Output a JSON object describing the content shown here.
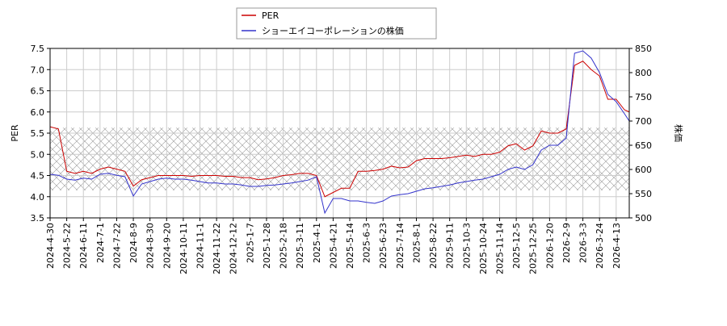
{
  "chart_data": {
    "type": "line",
    "ylabel": "PER",
    "y2label": "株価",
    "x": [
      0,
      7,
      14,
      21,
      28,
      35,
      42,
      49,
      56,
      63,
      70,
      77,
      84,
      91,
      98,
      105,
      112,
      119,
      126,
      133,
      140,
      147,
      154,
      161,
      168,
      175,
      182,
      189,
      196,
      203,
      210,
      217,
      224,
      231,
      238,
      245,
      252,
      259,
      266,
      273,
      280,
      287,
      294,
      301,
      308,
      315,
      322,
      329,
      336,
      343,
      350,
      357,
      364,
      371,
      378,
      385,
      392,
      399,
      406,
      413,
      420,
      427,
      434,
      441,
      448,
      455,
      462,
      469,
      476,
      483,
      487
    ],
    "xlim": [
      0,
      487
    ],
    "xticks": [
      {
        "value": 0,
        "label": "2024-4-30"
      },
      {
        "value": 14,
        "label": "2024-5-22"
      },
      {
        "value": 28,
        "label": "2024-6-11"
      },
      {
        "value": 42,
        "label": "2024-7-1"
      },
      {
        "value": 56,
        "label": "2024-7-22"
      },
      {
        "value": 70,
        "label": "2024-8-9"
      },
      {
        "value": 84,
        "label": "2024-8-30"
      },
      {
        "value": 98,
        "label": "2024-9-20"
      },
      {
        "value": 112,
        "label": "2024-10-11"
      },
      {
        "value": 126,
        "label": "2024-11-1"
      },
      {
        "value": 140,
        "label": "2024-11-22"
      },
      {
        "value": 154,
        "label": "2024-12-12"
      },
      {
        "value": 168,
        "label": "2025-1-7"
      },
      {
        "value": 182,
        "label": "2025-1-28"
      },
      {
        "value": 196,
        "label": "2025-2-18"
      },
      {
        "value": 210,
        "label": "2025-3-11"
      },
      {
        "value": 224,
        "label": "2025-4-1"
      },
      {
        "value": 238,
        "label": "2025-4-21"
      },
      {
        "value": 252,
        "label": "2025-5-14"
      },
      {
        "value": 266,
        "label": "2025-6-3"
      },
      {
        "value": 280,
        "label": "2025-6-23"
      },
      {
        "value": 294,
        "label": "2025-7-14"
      },
      {
        "value": 308,
        "label": "2025-8-1"
      },
      {
        "value": 322,
        "label": "2025-8-22"
      },
      {
        "value": 336,
        "label": "2025-9-11"
      },
      {
        "value": 350,
        "label": "2025-10-3"
      },
      {
        "value": 364,
        "label": "2025-10-24"
      },
      {
        "value": 378,
        "label": "2025-11-14"
      },
      {
        "value": 392,
        "label": "2025-12-5"
      },
      {
        "value": 406,
        "label": "2025-12-25"
      },
      {
        "value": 420,
        "label": "2026-1-20"
      },
      {
        "value": 434,
        "label": "2026-2-9"
      },
      {
        "value": 448,
        "label": "2026-3-3"
      },
      {
        "value": 462,
        "label": "2026-3-24"
      },
      {
        "value": 476,
        "label": "2026-4-13"
      }
    ],
    "ylim": [
      3.5,
      7.5
    ],
    "yticks": [
      {
        "value": 3.5,
        "label": "3.5"
      },
      {
        "value": 4,
        "label": "4.0"
      },
      {
        "value": 4.5,
        "label": "4.5"
      },
      {
        "value": 5,
        "label": "5.0"
      },
      {
        "value": 5.5,
        "label": "5.5"
      },
      {
        "value": 6,
        "label": "6.0"
      },
      {
        "value": 6.5,
        "label": "6.5"
      },
      {
        "value": 7,
        "label": "7.0"
      },
      {
        "value": 7.5,
        "label": "7.5"
      }
    ],
    "y2lim": [
      500,
      850
    ],
    "y2ticks": [
      500,
      550,
      600,
      650,
      700,
      750,
      800,
      850
    ],
    "grid": true,
    "band": [
      4.15,
      5.63
    ],
    "series": [
      {
        "name": "PER",
        "color": "#cc0000",
        "values": [
          5.65,
          5.6,
          4.6,
          4.55,
          4.6,
          4.55,
          4.65,
          4.7,
          4.65,
          4.6,
          4.25,
          4.4,
          4.45,
          4.5,
          4.5,
          4.5,
          4.5,
          4.48,
          4.5,
          4.5,
          4.5,
          4.48,
          4.48,
          4.45,
          4.45,
          4.4,
          4.42,
          4.45,
          4.5,
          4.52,
          4.55,
          4.55,
          4.5,
          4.0,
          4.1,
          4.2,
          4.2,
          4.6,
          4.6,
          4.62,
          4.65,
          4.72,
          4.68,
          4.7,
          4.85,
          4.9,
          4.9,
          4.9,
          4.92,
          4.95,
          4.98,
          4.95,
          5.0,
          5.0,
          5.05,
          5.2,
          5.25,
          5.1,
          5.2,
          5.55,
          5.5,
          5.5,
          5.6,
          7.1,
          7.2,
          7.0,
          6.85,
          6.3,
          6.3,
          6.05,
          6.0
        ]
      },
      {
        "name": "ショーエイコーポレーションの株価",
        "color": "#3333cc",
        "axis": "y2",
        "values": [
          590,
          588,
          580,
          578,
          582,
          580,
          590,
          592,
          588,
          585,
          545,
          570,
          575,
          580,
          582,
          580,
          580,
          578,
          575,
          572,
          572,
          570,
          570,
          568,
          565,
          565,
          567,
          568,
          570,
          572,
          575,
          578,
          585,
          510,
          540,
          540,
          535,
          535,
          532,
          530,
          535,
          545,
          548,
          550,
          555,
          560,
          562,
          565,
          568,
          572,
          575,
          578,
          580,
          585,
          590,
          600,
          605,
          600,
          610,
          640,
          650,
          650,
          665,
          840,
          845,
          830,
          800,
          755,
          740,
          715,
          700
        ]
      }
    ]
  }
}
